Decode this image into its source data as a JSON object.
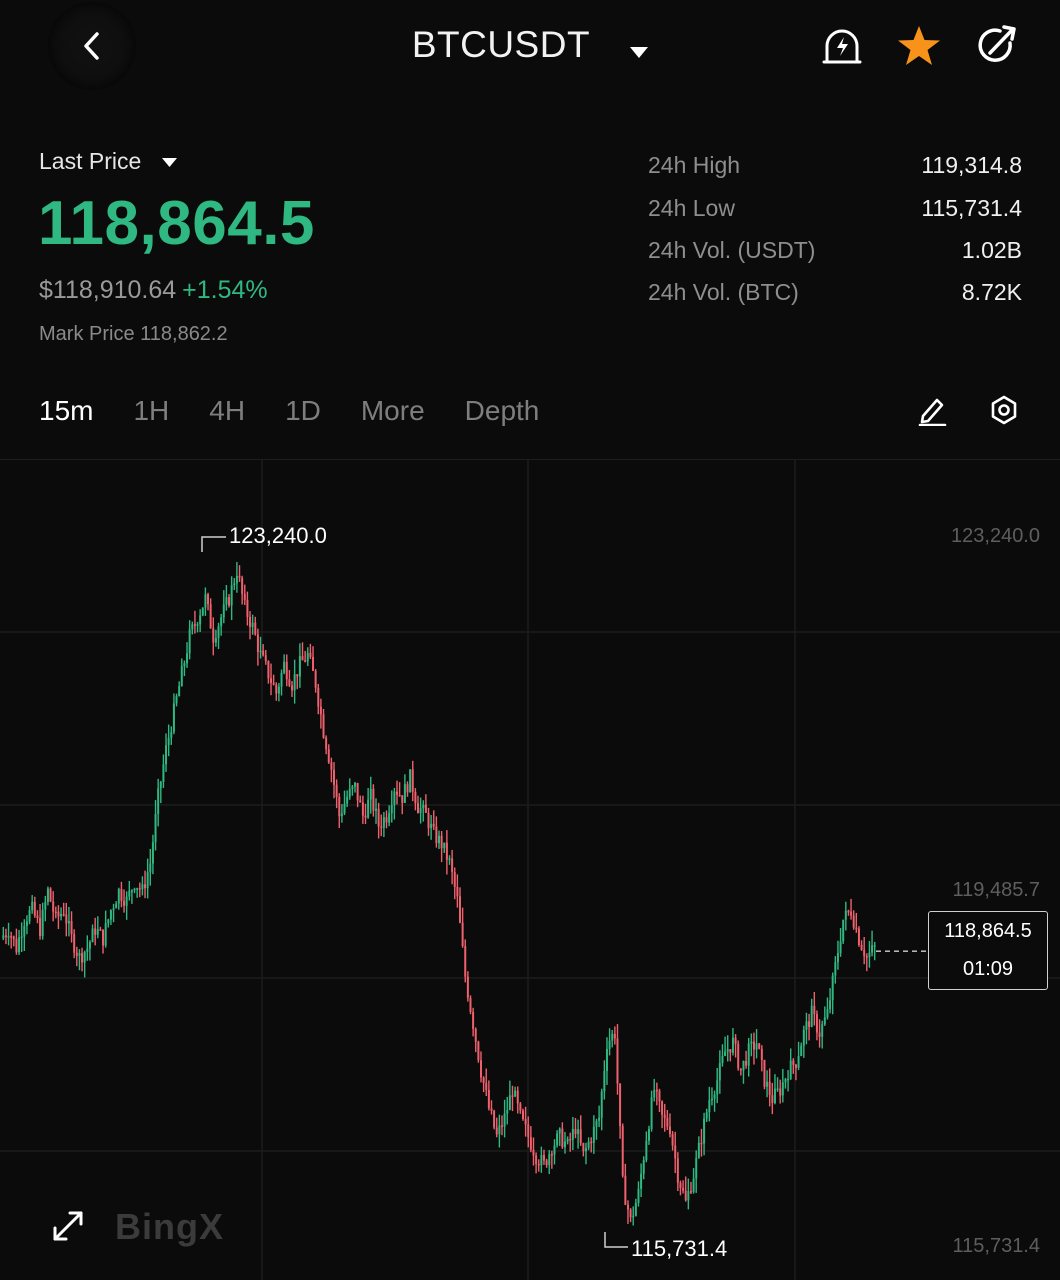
{
  "header": {
    "title": "BTCUSDT",
    "icons": [
      "back-chevron-icon",
      "caret-down-icon",
      "price-alert-icon",
      "star-icon",
      "share-icon"
    ],
    "favorite_color": "#f7931a"
  },
  "price": {
    "label": "Last Price",
    "last": "118,864.5",
    "usd": "$118,910.64",
    "change": "+1.54%",
    "mark": "Mark Price 118,862.2",
    "up_color": "#2fb882"
  },
  "stats": [
    {
      "label": "24h High",
      "value": "119,314.8"
    },
    {
      "label": "24h Low",
      "value": "115,731.4"
    },
    {
      "label": "24h Vol. (USDT)",
      "value": "1.02B"
    },
    {
      "label": "24h Vol. (BTC)",
      "value": "8.72K"
    }
  ],
  "tabs": [
    "15m",
    "1H",
    "4H",
    "1D",
    "More",
    "Depth"
  ],
  "active_tab": "15m",
  "tab_icons": [
    "draw-pen-icon",
    "settings-hexagon-icon"
  ],
  "chart_data": {
    "type": "candlestick",
    "interval": "15m",
    "y_axis_labels": [
      "123,240.0",
      "119,485.7",
      "115,731.4"
    ],
    "ylim": [
      115731.4,
      123240.0
    ],
    "high_marker": "123,240.0",
    "low_marker": "115,731.4",
    "current_price": "118,864.5",
    "countdown": "01:09",
    "up_color": "#2fb882",
    "down_color": "#f0616d",
    "grid": true,
    "close_path": [
      119000,
      119100,
      118900,
      119200,
      119300,
      119100,
      119500,
      119200,
      119300,
      119000,
      118800,
      118900,
      119100,
      119000,
      119300,
      119500,
      119400,
      119600,
      119500,
      119800,
      120500,
      121000,
      121400,
      121800,
      122200,
      122400,
      122600,
      122200,
      122400,
      122600,
      122900,
      122500,
      122300,
      122000,
      121800,
      121600,
      121900,
      121700,
      121900,
      122000,
      121700,
      121200,
      120800,
      120300,
      120500,
      120600,
      120300,
      120500,
      120200,
      120300,
      120600,
      120500,
      120700,
      120400,
      120300,
      120100,
      120000,
      119800,
      119400,
      118600,
      118100,
      117600,
      117200,
      116900,
      117100,
      117400,
      117100,
      116900,
      116700,
      116600,
      116800,
      116900,
      116800,
      117000,
      116700,
      116900,
      117100,
      117900,
      118000,
      116400,
      116000,
      116300,
      116900,
      117400,
      117100,
      117000,
      116500,
      116200,
      116500,
      116900,
      117300,
      117500,
      117800,
      117900,
      117600,
      117800,
      117900,
      117500,
      117300,
      117400,
      117600,
      117700,
      118000,
      118200,
      118000,
      118200,
      118700,
      119200,
      119300,
      119000,
      118800,
      118900
    ]
  },
  "brand": "BingX",
  "chart_tools": [
    "expand-icon"
  ]
}
